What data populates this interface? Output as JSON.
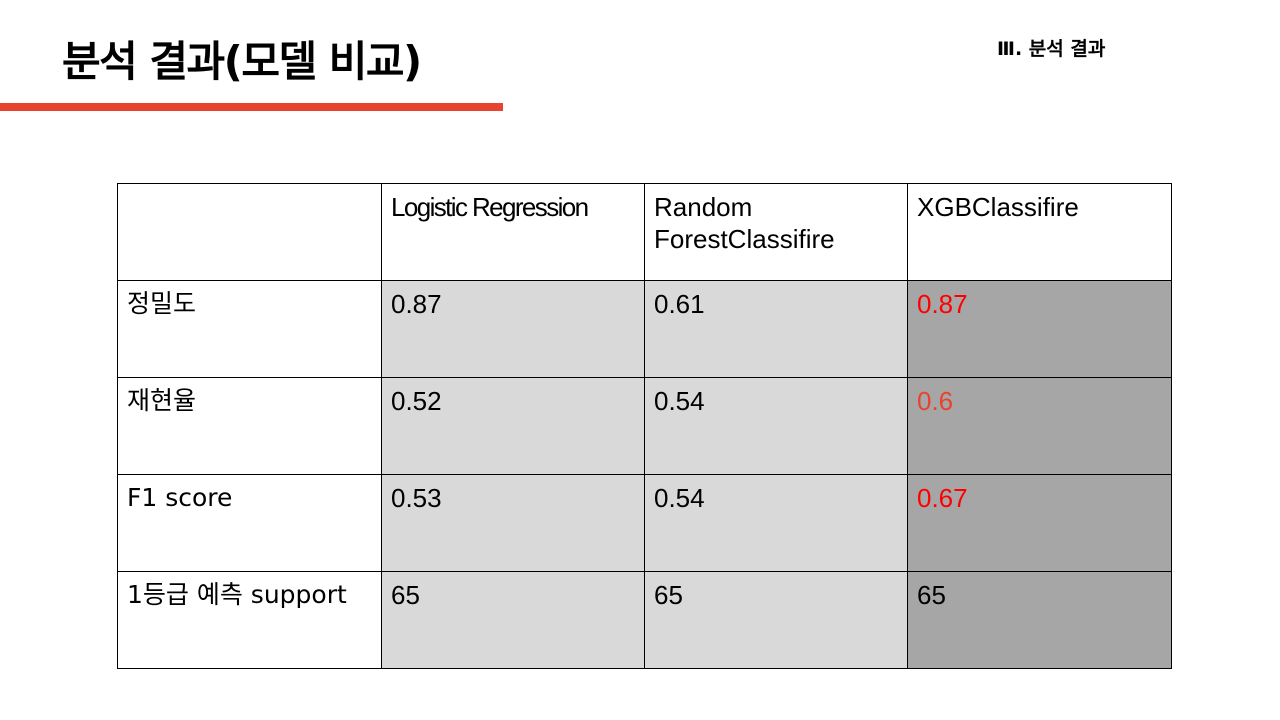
{
  "slide": {
    "title": "분석 결과(모델 비교)",
    "section": "Ⅲ. 분석 결과"
  },
  "colors": {
    "accent_bar": "#e8432f",
    "highlight_text": "#ff0000",
    "highlight_text_soft": "#e8432f",
    "cell_light": "#d9d9d9",
    "cell_dark": "#a6a6a6"
  },
  "table": {
    "corner": "",
    "columns": [
      "Logistic Regression",
      "Random ForestClassifire",
      "XGBClassifire"
    ],
    "rows": [
      {
        "label": "정밀도",
        "values": [
          "0.87",
          "0.61",
          "0.87"
        ]
      },
      {
        "label": "재현율",
        "values": [
          "0.52",
          "0.54",
          "0.6"
        ]
      },
      {
        "label": "F1 score",
        "values": [
          "0.53",
          "0.54",
          "0.67"
        ]
      },
      {
        "label": "1등급 예측 support",
        "values": [
          "65",
          "65",
          "65"
        ]
      }
    ]
  }
}
